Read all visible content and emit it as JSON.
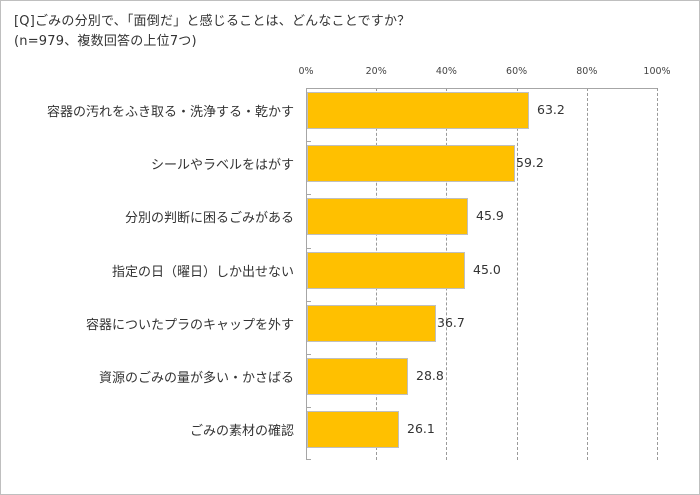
{
  "title": {
    "line1": "[Q]ごみの分別で、「面倒だ」と感じることは、どんなことですか？",
    "line2": "(n=979、複数回答の上位7つ)"
  },
  "axis": {
    "ticks": [
      "0%",
      "20%",
      "40%",
      "60%",
      "80%",
      "100%"
    ]
  },
  "chart_data": {
    "type": "bar",
    "orientation": "horizontal",
    "title": "[Q]ごみの分別で、「面倒だ」と感じることは、どんなことですか？ (n=979、複数回答の上位7つ)",
    "xlabel": "",
    "ylabel": "",
    "xlim": [
      0,
      100
    ],
    "x_tick_labels": [
      "0%",
      "20%",
      "40%",
      "60%",
      "80%",
      "100%"
    ],
    "grid": "vertical dashed",
    "legend": "none",
    "bar_color": "#ffc000",
    "categories": [
      "容器の汚れをふき取る・洗浄する・乾かす",
      "シールやラベルをはがす",
      "分別の判断に困るごみがある",
      "指定の日（曜日）しか出せない",
      "容器についたプラのキャップを外す",
      "資源のごみの量が多い・かさばる",
      "ごみの素材の確認"
    ],
    "values": [
      63.2,
      59.2,
      45.9,
      45.0,
      36.7,
      28.8,
      26.1
    ],
    "value_labels": [
      "63.2",
      "59.2",
      "45.9",
      "45.0",
      "36.7",
      "28.8",
      "26.1"
    ]
  }
}
